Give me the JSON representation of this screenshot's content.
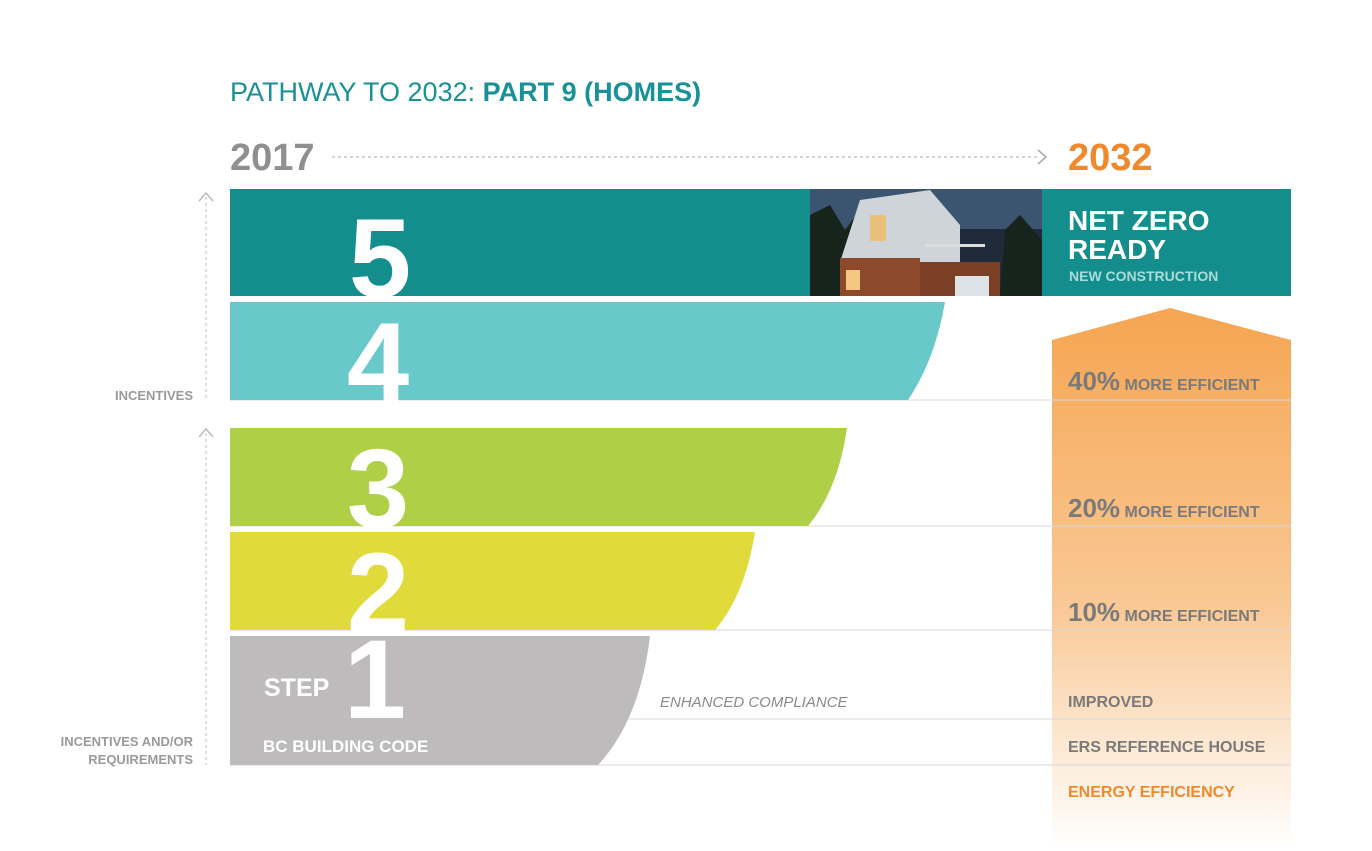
{
  "title": {
    "prefix": "PATHWAY TO 2032:",
    "emphasis": "PART 9 (HOMES)"
  },
  "timeline": {
    "start": "2017",
    "end": "2032"
  },
  "steps": [
    {
      "number": "5",
      "label_lines": [
        "NET ZERO",
        "READY"
      ],
      "sublabel": "NEW CONSTRUCTION"
    },
    {
      "number": "4",
      "percent": "40%",
      "label": "MORE EFFICIENT"
    },
    {
      "number": "3",
      "percent": "20%",
      "label": "MORE EFFICIENT"
    },
    {
      "number": "2",
      "percent": "10%",
      "label": "MORE EFFICIENT"
    },
    {
      "number": "1",
      "prefix": "STEP",
      "base": "BC BUILDING CODE"
    }
  ],
  "middle_label": "ENHANCED COMPLIANCE",
  "arrow_labels": [
    "IMPROVED",
    "ERS REFERENCE HOUSE",
    "ENERGY EFFICIENCY"
  ],
  "side_labels": {
    "upper": [
      "INCENTIVES"
    ],
    "lower": [
      "INCENTIVES AND/OR",
      "REQUIREMENTS"
    ]
  }
}
